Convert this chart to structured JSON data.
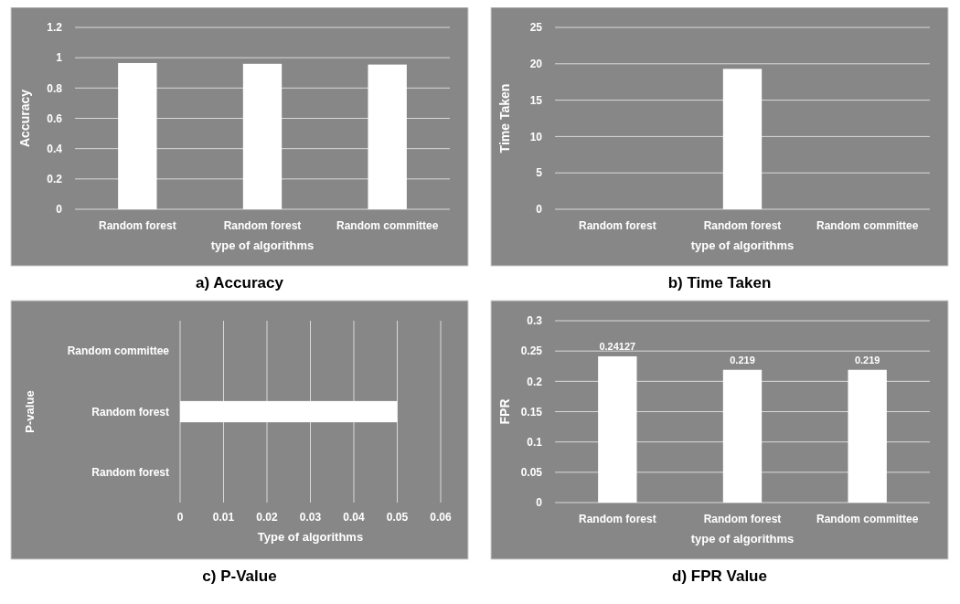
{
  "chart_data": [
    {
      "type": "bar",
      "title": "a) Accuracy",
      "xlabel": "type of algorithms",
      "ylabel": "Accuracy",
      "categories": [
        "Random forest",
        "Random forest",
        "Random committee"
      ],
      "values": [
        0.965,
        0.96,
        0.955
      ],
      "color": "#ffffff",
      "ylim": [
        0,
        1.2
      ],
      "yticks": [
        0,
        0.2,
        0.4,
        0.6,
        0.8,
        1,
        1.2
      ],
      "grid": "y"
    },
    {
      "type": "bar",
      "title": "b) Time Taken",
      "xlabel": "type of algorithms",
      "ylabel": "Time Taken",
      "categories": [
        "Random forest",
        "Random forest",
        "Random committee"
      ],
      "values": [
        0,
        19.3,
        0
      ],
      "color": "#ffffff",
      "ylim": [
        0,
        25
      ],
      "yticks": [
        0,
        5,
        10,
        15,
        20,
        25
      ],
      "grid": "y"
    },
    {
      "type": "bar",
      "orientation": "horizontal",
      "title": "c) P-Value",
      "xlabel": "Type of algorithms",
      "ylabel": "P-value",
      "categories": [
        "Random committee",
        "Random forest",
        "Random forest"
      ],
      "values": [
        0,
        0.05,
        0
      ],
      "color": "#ffffff",
      "xlim": [
        0,
        0.06
      ],
      "xticks": [
        0,
        0.01,
        0.02,
        0.03,
        0.04,
        0.05,
        0.06
      ],
      "grid": "x"
    },
    {
      "type": "bar",
      "title": "d) FPR Value",
      "xlabel": "type of algorithms",
      "ylabel": "FPR",
      "categories": [
        "Random forest",
        "Random forest",
        "Random committee"
      ],
      "values": [
        0.24127,
        0.219,
        0.219
      ],
      "color": "#ffffff",
      "ylim": [
        0,
        0.3
      ],
      "yticks": [
        0,
        0.05,
        0.1,
        0.15,
        0.2,
        0.25,
        0.3
      ],
      "grid": "y",
      "data_labels": true
    }
  ]
}
